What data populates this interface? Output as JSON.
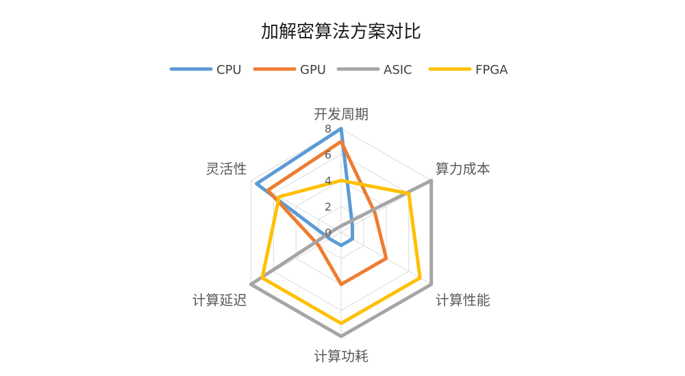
{
  "chart_data": {
    "type": "radar",
    "title": "加解密算法方案对比",
    "categories": [
      "开发周期",
      "算力成本",
      "计算性能",
      "计算功耗",
      "计算延迟",
      "灵活性"
    ],
    "rmin": 0,
    "rmax": 8,
    "ticks": [
      "0",
      "2",
      "4",
      "6",
      "8"
    ],
    "grid": true,
    "legend_position": "top",
    "series": [
      {
        "name": "CPU",
        "color": "#5B9BD5",
        "values": [
          8,
          1,
          1,
          1,
          1,
          7.5
        ]
      },
      {
        "name": "GPU",
        "color": "#ED7D31",
        "values": [
          7,
          3,
          4,
          4,
          2,
          6.5
        ]
      },
      {
        "name": "ASIC",
        "color": "#A5A5A5",
        "values": [
          0.5,
          8,
          8,
          8,
          8,
          0.5
        ]
      },
      {
        "name": "FPGA",
        "color": "#FFC000",
        "values": [
          4,
          6,
          7,
          7,
          7,
          5.5
        ]
      }
    ]
  }
}
